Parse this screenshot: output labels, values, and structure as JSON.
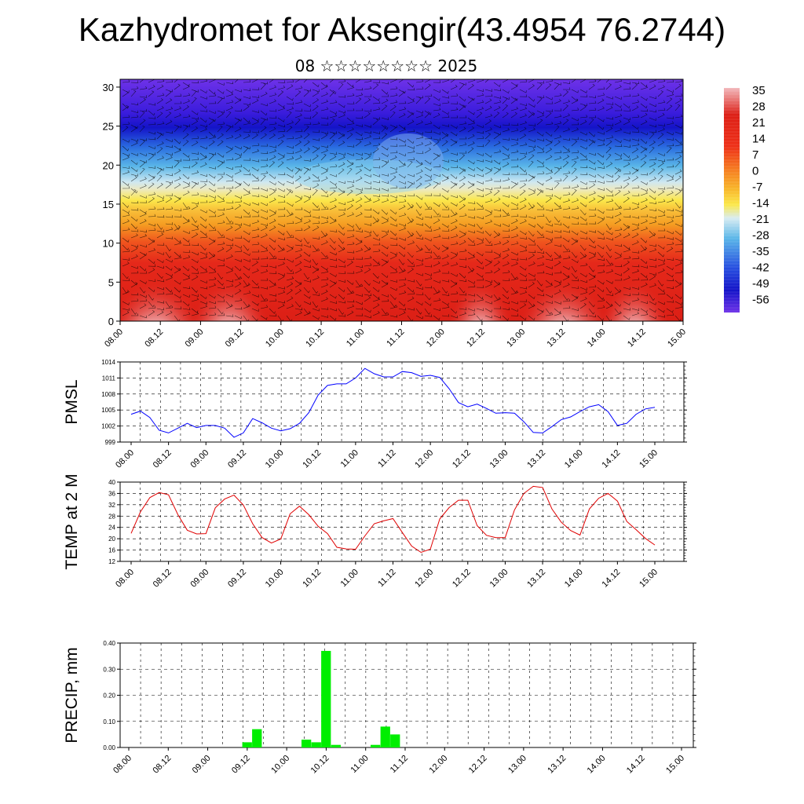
{
  "header": {
    "title": "Kazhydromet for Aksengir(43.4954 76.2744)",
    "subtitle": "08 ☆☆☆☆☆☆☆☆ 2025"
  },
  "time_ticks": [
    "08.00",
    "08.12",
    "09.00",
    "09.12",
    "10.00",
    "10.12",
    "11.00",
    "11.12",
    "12.00",
    "12.12",
    "13.00",
    "13.12",
    "14.00",
    "14.12",
    "15.00"
  ],
  "chart_data": [
    {
      "type": "heatmap",
      "name": "temperature-wind-cross-section",
      "yticks": [
        0,
        5,
        10,
        15,
        20,
        25,
        30
      ],
      "ylim": [
        0,
        31
      ],
      "colorbar": {
        "labels": [
          "35",
          "28",
          "21",
          "14",
          "7",
          "0",
          "-7",
          "-14",
          "-21",
          "-28",
          "-35",
          "-42",
          "-49",
          "-56"
        ],
        "range": [
          -63,
          42
        ]
      },
      "colors": {
        "very_hot": "#f2b8bc",
        "hot": "#dc1f16",
        "warm": "#f0561e",
        "orange": "#f8a020",
        "yellow": "#fbe84a",
        "pale": "#d8ecf2",
        "sky": "#5ab6e8",
        "blue": "#2850e0",
        "deep_blue": "#1414c8",
        "violet": "#6e32e8"
      }
    },
    {
      "type": "line",
      "name": "PMSL",
      "ylabel": "PMSL",
      "yticks": [
        999,
        1002,
        1005,
        1008,
        1011,
        1014
      ],
      "ylim": [
        999,
        1014
      ],
      "color": "#0000ff",
      "x": [
        0,
        3,
        6,
        9,
        12,
        15,
        18,
        21,
        24,
        27,
        30,
        33,
        36,
        39,
        42,
        45,
        48,
        51,
        54,
        57,
        60,
        63,
        66,
        69,
        72,
        75,
        78,
        81,
        84,
        87,
        90,
        93,
        96,
        99,
        102,
        105,
        108,
        111,
        114,
        117,
        120,
        123,
        126,
        129,
        132,
        135,
        138,
        141,
        144,
        147,
        150,
        153,
        156,
        159,
        162,
        165,
        168
      ],
      "values": [
        1004.2,
        1004.8,
        1003.6,
        1001.2,
        1000.7,
        1001.6,
        1002.5,
        1001.7,
        1002.1,
        1002.1,
        1001.6,
        999.9,
        1000.7,
        1003.4,
        1002.6,
        1001.6,
        1001.1,
        1001.5,
        1002.5,
        1004.5,
        1007.8,
        1009.6,
        1009.9,
        1009.9,
        1011.0,
        1012.8,
        1011.8,
        1011.2,
        1011.2,
        1012.2,
        1012.0,
        1011.3,
        1011.5,
        1011.1,
        1009.0,
        1006.4,
        1005.6,
        1006.1,
        1005.3,
        1004.4,
        1004.5,
        1004.4,
        1002.8,
        1000.8,
        1000.7,
        1001.9,
        1003.2,
        1003.7,
        1004.7,
        1005.6,
        1006.0,
        1004.7,
        1002.1,
        1002.5,
        1004.2,
        1005.2,
        1005.5
      ]
    },
    {
      "type": "line",
      "name": "TEMP at 2 M",
      "ylabel": "TEMP at 2 M",
      "yticks": [
        12,
        16,
        20,
        24,
        28,
        32,
        36,
        40
      ],
      "ylim": [
        12,
        40
      ],
      "color": "#e00000",
      "x": [
        0,
        3,
        6,
        9,
        12,
        15,
        18,
        21,
        24,
        27,
        30,
        33,
        36,
        39,
        42,
        45,
        48,
        51,
        54,
        57,
        60,
        63,
        66,
        69,
        72,
        75,
        78,
        81,
        84,
        87,
        90,
        93,
        96,
        99,
        102,
        105,
        108,
        111,
        114,
        117,
        120,
        123,
        126,
        129,
        132,
        135,
        138,
        141,
        144,
        147,
        150,
        153,
        156,
        159,
        162,
        165,
        168
      ],
      "values": [
        21.9,
        29.5,
        34.5,
        36.3,
        35.5,
        28.5,
        23.0,
        21.7,
        21.8,
        30.9,
        34.0,
        35.4,
        31.9,
        25.3,
        20.4,
        18.5,
        19.9,
        28.8,
        31.5,
        28.5,
        24.4,
        21.8,
        17.0,
        16.4,
        16.3,
        21.0,
        25.3,
        26.3,
        27.1,
        22.2,
        17.4,
        15.2,
        16.3,
        27.0,
        31.0,
        33.6,
        33.6,
        24.6,
        21.2,
        20.4,
        20.4,
        30.2,
        36.0,
        38.5,
        38.1,
        30.5,
        25.8,
        22.9,
        21.3,
        30.5,
        34.3,
        36.0,
        33.3,
        26.1,
        23.2,
        20.1,
        17.8
      ]
    },
    {
      "type": "bar",
      "name": "PRECIP, mm",
      "ylabel": "PRECIP, mm",
      "yticks": [
        "0.00",
        "0.10",
        "0.20",
        "0.30",
        "0.40"
      ],
      "ylim": [
        0,
        0.4
      ],
      "color": "#00ee00",
      "bar_width_hours": 3,
      "x": [
        36,
        39,
        54,
        57,
        60,
        63,
        75,
        78,
        81
      ],
      "values": [
        0.02,
        0.07,
        0.03,
        0.02,
        0.37,
        0.01,
        0.01,
        0.08,
        0.05
      ]
    }
  ]
}
